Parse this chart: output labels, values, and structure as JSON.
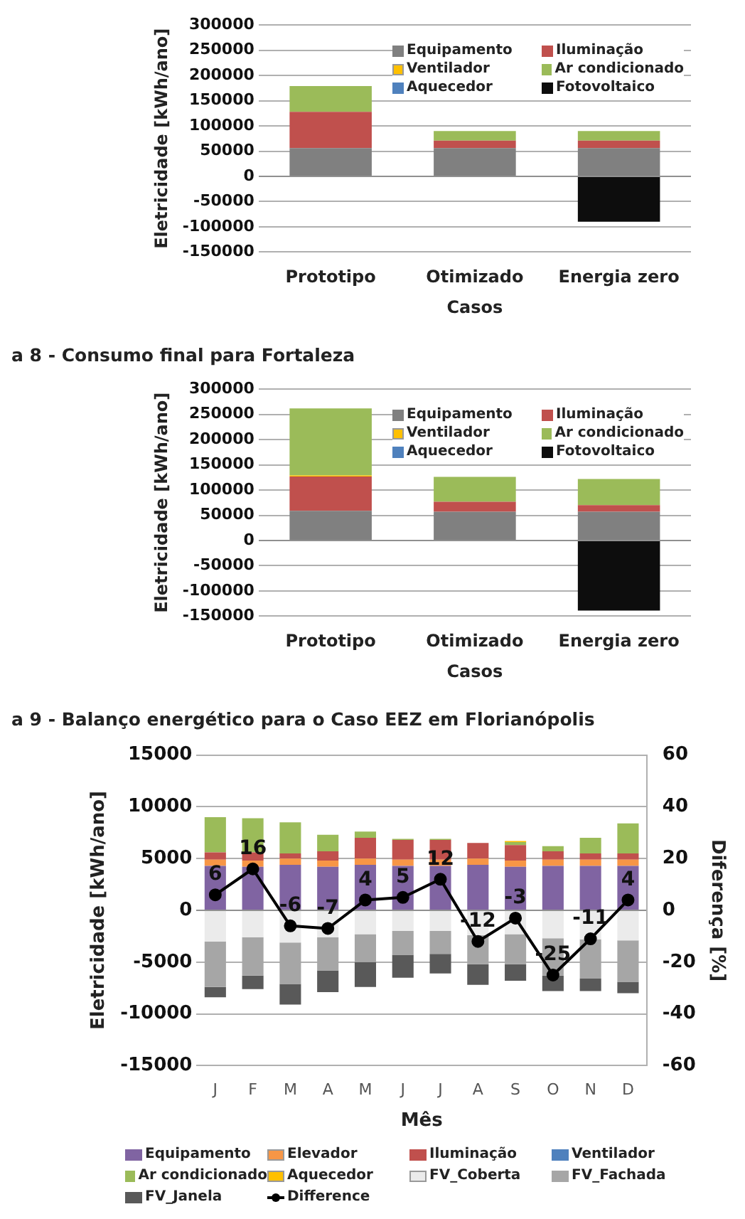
{
  "chart_data": [
    {
      "type": "bar",
      "stacked": true,
      "ylabel": "Eletricidade [kWh/ano]",
      "xlabel": "Casos",
      "categories": [
        "Prototipo",
        "Otimizado",
        "Energia zero"
      ],
      "ylim": [
        -150000,
        300000
      ],
      "yticks": [
        -150000,
        -100000,
        -50000,
        0,
        50000,
        100000,
        150000,
        200000,
        250000,
        300000
      ],
      "grid": "y",
      "legend": "top right",
      "series": [
        {
          "name": "Equipamento",
          "color": "#808080",
          "values": [
            56000,
            56000,
            56000
          ]
        },
        {
          "name": "Iluminação",
          "color": "#c0504d",
          "values": [
            72000,
            15000,
            15000
          ]
        },
        {
          "name": "Ventilador",
          "color": "#ffc000",
          "values": [
            0,
            0,
            0
          ]
        },
        {
          "name": "Ar condicionado",
          "color": "#9bbb59",
          "values": [
            51000,
            19000,
            19000
          ]
        },
        {
          "name": "Aquecedor",
          "color": "#4f81bd",
          "values": [
            0,
            0,
            0
          ]
        },
        {
          "name": "Fotovoltaico",
          "color": "#0d0d0d",
          "values": [
            0,
            0,
            -90000
          ]
        }
      ]
    },
    {
      "type": "bar",
      "stacked": true,
      "title": "a 8 - Consumo final para Fortaleza",
      "ylabel": "Eletricidade [kWh/ano]",
      "xlabel": "Casos",
      "categories": [
        "Prototipo",
        "Otimizado",
        "Energia zero"
      ],
      "ylim": [
        -150000,
        300000
      ],
      "yticks": [
        -150000,
        -100000,
        -50000,
        0,
        50000,
        100000,
        150000,
        200000,
        250000,
        300000
      ],
      "grid": "y",
      "legend": "top right",
      "series": [
        {
          "name": "Equipamento",
          "color": "#808080",
          "values": [
            59000,
            57000,
            57000
          ]
        },
        {
          "name": "Iluminação",
          "color": "#c0504d",
          "values": [
            68000,
            20000,
            13000
          ]
        },
        {
          "name": "Ventilador",
          "color": "#ffc000",
          "values": [
            2000,
            0,
            0
          ]
        },
        {
          "name": "Ar condicionado",
          "color": "#9bbb59",
          "values": [
            133000,
            49000,
            52000
          ]
        },
        {
          "name": "Aquecedor",
          "color": "#4f81bd",
          "values": [
            0,
            0,
            0
          ]
        },
        {
          "name": "Fotovoltaico",
          "color": "#0d0d0d",
          "values": [
            0,
            0,
            -139000
          ]
        }
      ]
    },
    {
      "type": "bar",
      "stacked": true,
      "title": "a 9 - Balanço energético para o Caso EEZ em Florianópolis",
      "ylabel": "Eletricidade [kWh/ano]",
      "y2label": "Diferença [%]",
      "xlabel": "Mês",
      "categories": [
        "J",
        "F",
        "M",
        "A",
        "M",
        "J",
        "J",
        "A",
        "S",
        "O",
        "N",
        "D"
      ],
      "ylim": [
        -15000,
        15000
      ],
      "yticks": [
        -15000,
        -10000,
        -5000,
        0,
        5000,
        10000,
        15000
      ],
      "y2lim": [
        -60,
        60
      ],
      "y2ticks": [
        -60,
        -40,
        -20,
        0,
        20,
        40,
        60
      ],
      "grid": "y",
      "legend": "bottom",
      "series": [
        {
          "name": "Equipamento",
          "color": "#8064a2",
          "values": [
            4300,
            4200,
            4400,
            4200,
            4400,
            4300,
            4300,
            4400,
            4200,
            4300,
            4300,
            4300
          ]
        },
        {
          "name": "Elevador",
          "color": "#f79646",
          "values": [
            600,
            600,
            600,
            600,
            600,
            600,
            600,
            600,
            600,
            600,
            600,
            600
          ]
        },
        {
          "name": "Iluminação",
          "color": "#c0504d",
          "values": [
            700,
            800,
            500,
            900,
            2000,
            1900,
            1900,
            1500,
            1500,
            800,
            600,
            600
          ]
        },
        {
          "name": "Ventilador",
          "color": "#4f81bd",
          "values": [
            0,
            0,
            0,
            0,
            0,
            0,
            0,
            0,
            0,
            0,
            0,
            0
          ]
        },
        {
          "name": "Ar condicionado",
          "color": "#9bbb59",
          "values": [
            3400,
            3300,
            3000,
            1600,
            600,
            100,
            100,
            0,
            300,
            500,
            1500,
            2900
          ]
        },
        {
          "name": "Aquecedor",
          "color": "#ffc000",
          "values": [
            0,
            0,
            0,
            0,
            0,
            0,
            0,
            0,
            100,
            0,
            0,
            0
          ]
        },
        {
          "name": "FV_Coberta",
          "color": "#ebebeb",
          "values": [
            -3000,
            -2600,
            -3100,
            -2600,
            -2300,
            -2000,
            -2000,
            -2400,
            -2300,
            -2700,
            -2800,
            -2900
          ]
        },
        {
          "name": "FV_Fachada",
          "color": "#a6a6a6",
          "values": [
            -4400,
            -3700,
            -4000,
            -3200,
            -2700,
            -2300,
            -2200,
            -2800,
            -2900,
            -3600,
            -3800,
            -4000
          ]
        },
        {
          "name": "FV_Janela",
          "color": "#595959",
          "values": [
            -1000,
            -1300,
            -2000,
            -2100,
            -2400,
            -2200,
            -1900,
            -2000,
            -1600,
            -1500,
            -1200,
            -1100
          ]
        },
        {
          "name": "Difference",
          "type": "line",
          "axis": "y2",
          "marker": "circle",
          "color": "#000000",
          "values": [
            6,
            16,
            -6,
            -7,
            4,
            5,
            12,
            -12,
            -3,
            -25,
            -11,
            4
          ],
          "value_labels": [
            "6",
            "16",
            "-6",
            "-7",
            "4",
            "5",
            "12",
            "-12",
            "-3",
            "-25",
            "-11",
            "4"
          ]
        }
      ]
    }
  ]
}
